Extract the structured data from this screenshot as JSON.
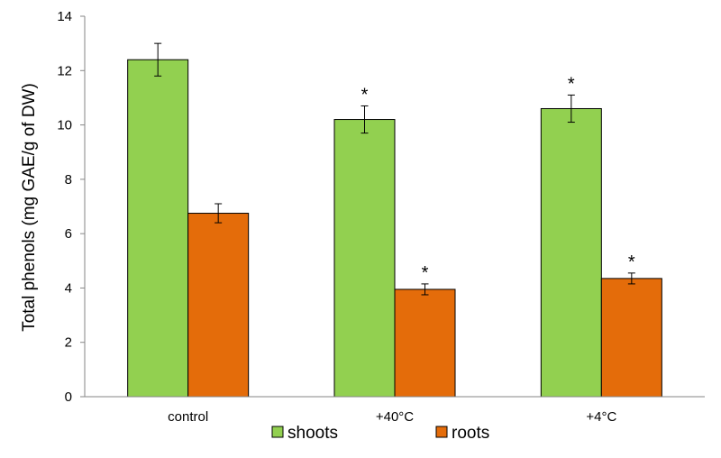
{
  "chart_data": {
    "type": "bar",
    "title": "",
    "xlabel": "",
    "ylabel": "Total phenols (mg GAE/g of DW)",
    "ylim": [
      0,
      14
    ],
    "yticks": [
      0,
      2,
      4,
      6,
      8,
      10,
      12,
      14
    ],
    "grid": false,
    "legend_position": "bottom",
    "categories": [
      "control",
      "+40°C",
      "+4°C"
    ],
    "series": [
      {
        "name": "shoots",
        "color": "#92d050",
        "values": [
          12.4,
          10.2,
          10.6
        ],
        "errors": [
          0.6,
          0.5,
          0.5
        ],
        "significance": [
          "",
          "*",
          "*"
        ]
      },
      {
        "name": "roots",
        "color": "#e46c0a",
        "values": [
          6.75,
          3.95,
          4.35
        ],
        "errors": [
          0.35,
          0.2,
          0.2
        ],
        "significance": [
          "",
          "*",
          "*"
        ]
      }
    ]
  }
}
